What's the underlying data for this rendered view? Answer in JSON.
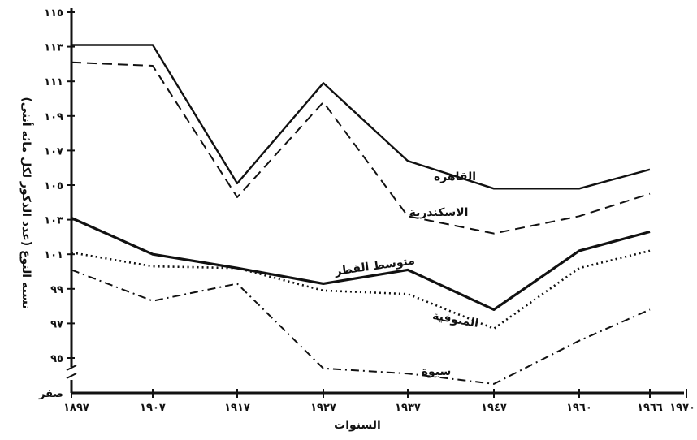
{
  "chart_data": {
    "type": "line",
    "xlabel": "السنوات",
    "ylabel": "نسبة النوع (عدد الذكور لكل مائة أنثى)",
    "x_ticks": [
      "١٨٩٧",
      "١٩٠٧",
      "١٩١٧",
      "١٩٢٧",
      "١٩٣٧",
      "١٩٤٧",
      "١٩٦٠",
      "١٩٦٦",
      "١٩٧٠"
    ],
    "y_ticks": [
      {
        "value": 95,
        "label": "٩٥"
      },
      {
        "value": 97,
        "label": "٩٧"
      },
      {
        "value": 99,
        "label": "٩٩"
      },
      {
        "value": 101,
        "label": "١٠١"
      },
      {
        "value": 103,
        "label": "١٠٣"
      },
      {
        "value": 105,
        "label": "١٠٥"
      },
      {
        "value": 107,
        "label": "١٠٧"
      },
      {
        "value": 109,
        "label": "١٠٩"
      },
      {
        "value": 111,
        "label": "١١١"
      },
      {
        "value": 113,
        "label": "١١٣"
      },
      {
        "value": 115,
        "label": "١١٥"
      }
    ],
    "y_zero_label": "صفر",
    "ylim": [
      93.5,
      115
    ],
    "axis_break": true,
    "series": [
      {
        "name": "القاهرة",
        "style": "solid",
        "color": "#111111",
        "points": [
          [
            "١٨٩٧",
            113.1
          ],
          [
            "١٩٠٧",
            113.1
          ],
          [
            "١٩١٧",
            105.1
          ],
          [
            "١٩٢٧",
            110.9
          ],
          [
            "١٩٣٧",
            106.4
          ],
          [
            "١٩٤٧",
            104.8
          ],
          [
            "١٩٦٠",
            104.8
          ],
          [
            "١٩٦٦",
            105.9
          ]
        ]
      },
      {
        "name": "الاسكندرية",
        "style": "dashed",
        "color": "#111111",
        "points": [
          [
            "١٨٩٧",
            112.1
          ],
          [
            "١٩٠٧",
            111.9
          ],
          [
            "١٩١٧",
            104.3
          ],
          [
            "١٩٢٧",
            109.8
          ],
          [
            "١٩٣٧",
            103.2
          ],
          [
            "١٩٤٧",
            102.2
          ],
          [
            "١٩٦٠",
            103.2
          ],
          [
            "١٩٦٦",
            104.5
          ]
        ]
      },
      {
        "name": "متوسط القطر",
        "style": "solid-thick",
        "color": "#111111",
        "points": [
          [
            "١٨٩٧",
            103.1
          ],
          [
            "١٩٠٧",
            101.0
          ],
          [
            "١٩١٧",
            100.2
          ],
          [
            "١٩٢٧",
            99.3
          ],
          [
            "١٩٣٧",
            100.1
          ],
          [
            "١٩٤٧",
            97.8
          ],
          [
            "١٩٦٠",
            101.2
          ],
          [
            "١٩٦٦",
            102.3
          ]
        ]
      },
      {
        "name": "المنوفية",
        "style": "dotted",
        "color": "#111111",
        "points": [
          [
            "١٨٩٧",
            101.1
          ],
          [
            "١٩٠٧",
            100.3
          ],
          [
            "١٩١٧",
            100.2
          ],
          [
            "١٩٢٧",
            98.9
          ],
          [
            "١٩٣٧",
            98.7
          ],
          [
            "١٩٤٧",
            96.7
          ],
          [
            "١٩٦٠",
            100.2
          ],
          [
            "١٩٦٦",
            101.2
          ]
        ]
      },
      {
        "name": "سيوة",
        "style": "dash-dot",
        "color": "#111111",
        "points": [
          [
            "١٨٩٧",
            100.1
          ],
          [
            "١٩٠٧",
            98.3
          ],
          [
            "١٩١٧",
            99.3
          ],
          [
            "١٩٢٧",
            94.4
          ],
          [
            "١٩٣٧",
            94.1
          ],
          [
            "١٩٤٧",
            93.5
          ],
          [
            "١٩٦٠",
            96.0
          ],
          [
            "١٩٦٦",
            97.8
          ]
        ]
      }
    ]
  }
}
